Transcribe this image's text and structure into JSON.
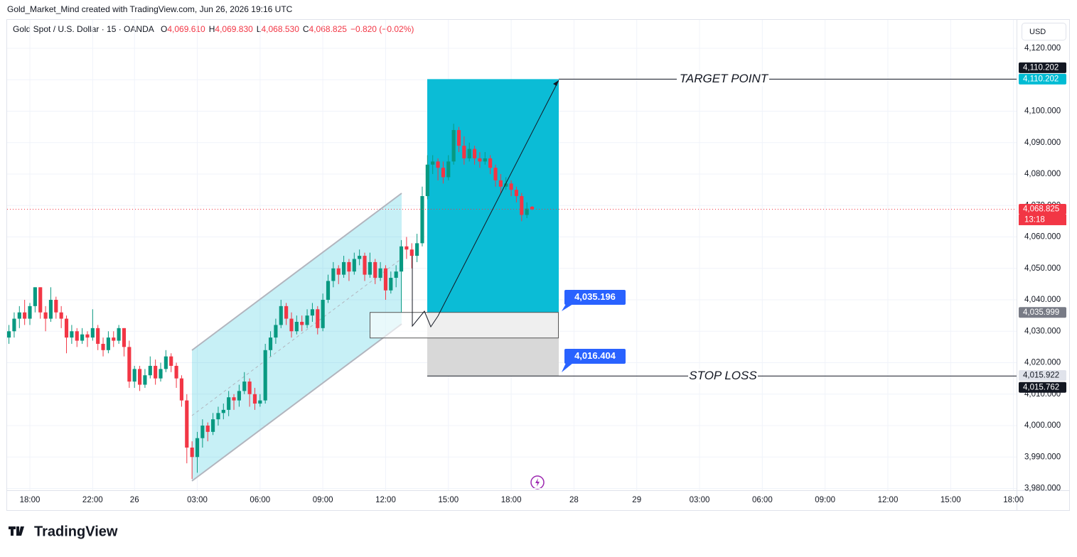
{
  "chart_data": {
    "type": "candlestick",
    "attribution": "Gold_Market_Mind created with TradingView.com, Jun 26, 2026 19:16 UTC",
    "symbol": "Gold Spot / U.S. Dollar · 15 · OANDA",
    "legend": [
      {
        "key": "O",
        "value": "4,069.610"
      },
      {
        "key": "H",
        "value": "4,069.830"
      },
      {
        "key": "L",
        "value": "4,068.530"
      },
      {
        "key": "C",
        "value": "4,068.825"
      }
    ],
    "change": "−0.820 (−0.02%)",
    "currency": "USD",
    "brand": "TradingView",
    "up_color": "#089981",
    "down_color": "#f23645",
    "grid": true,
    "xlim": [
      -0.35,
      192.6
    ],
    "ylim": [
      3979.44,
      4129.04
    ],
    "xticks": [
      {
        "value": 4,
        "label": "18:00"
      },
      {
        "value": 16,
        "label": "22:00"
      },
      {
        "value": 24,
        "label": "26"
      },
      {
        "value": 36,
        "label": "03:00"
      },
      {
        "value": 48,
        "label": "06:00"
      },
      {
        "value": 60,
        "label": "09:00"
      },
      {
        "value": 72,
        "label": "12:00"
      },
      {
        "value": 84,
        "label": "15:00"
      },
      {
        "value": 96,
        "label": "18:00"
      },
      {
        "value": 108,
        "label": "28"
      },
      {
        "value": 120,
        "label": "29"
      },
      {
        "value": 132,
        "label": "03:00"
      },
      {
        "value": 144,
        "label": "06:00"
      },
      {
        "value": 156,
        "label": "09:00"
      },
      {
        "value": 168,
        "label": "12:00"
      },
      {
        "value": 180,
        "label": "15:00"
      },
      {
        "value": 192,
        "label": "18:00"
      }
    ],
    "yticks": [
      {
        "value": 4120,
        "label": "4,120.000"
      },
      {
        "value": 4110,
        "label": "4,110.000"
      },
      {
        "value": 4100,
        "label": "4,100.000"
      },
      {
        "value": 4090,
        "label": "4,090.000"
      },
      {
        "value": 4080,
        "label": "4,080.000"
      },
      {
        "value": 4070,
        "label": "4,070.000"
      },
      {
        "value": 4060,
        "label": "4,060.000"
      },
      {
        "value": 4050,
        "label": "4,050.000"
      },
      {
        "value": 4040,
        "label": "4,040.000"
      },
      {
        "value": 4030,
        "label": "4,030.000"
      },
      {
        "value": 4020,
        "label": "4,020.000"
      },
      {
        "value": 4010,
        "label": "4,010.000"
      },
      {
        "value": 4000,
        "label": "4,000.000"
      },
      {
        "value": 3990,
        "label": "3,990.000"
      },
      {
        "value": 3980,
        "label": "3,980.000"
      }
    ],
    "ohlc": [
      [
        4028,
        4032,
        4026,
        4030
      ],
      [
        4030,
        4036,
        4028,
        4034
      ],
      [
        4034,
        4038,
        4031,
        4036
      ],
      [
        4036,
        4040,
        4032,
        4034
      ],
      [
        4034,
        4039,
        4032,
        4038
      ],
      [
        4038,
        4044,
        4036,
        4044
      ],
      [
        4044,
        4044,
        4034,
        4036
      ],
      [
        4036,
        4038,
        4030,
        4034
      ],
      [
        4034,
        4044,
        4033,
        4040
      ],
      [
        4040,
        4041,
        4034,
        4036
      ],
      [
        4036,
        4038,
        4031,
        4034
      ],
      [
        4034,
        4035,
        4023,
        4028
      ],
      [
        4028,
        4032,
        4026,
        4030
      ],
      [
        4030,
        4031,
        4025,
        4027
      ],
      [
        4027,
        4031,
        4026,
        4029
      ],
      [
        4029,
        4030,
        4025,
        4028
      ],
      [
        4028,
        4037,
        4027,
        4031
      ],
      [
        4031,
        4032,
        4024,
        4026
      ],
      [
        4026,
        4028,
        4022,
        4024
      ],
      [
        4024,
        4030,
        4023,
        4028
      ],
      [
        4028,
        4030,
        4025,
        4027
      ],
      [
        4027,
        4032,
        4026,
        4031
      ],
      [
        4031,
        4031,
        4022,
        4025
      ],
      [
        4025,
        4027,
        4012,
        4014
      ],
      [
        4014,
        4019,
        4012,
        4018
      ],
      [
        4018,
        4019,
        4011,
        4013
      ],
      [
        4013,
        4018,
        4012,
        4016
      ],
      [
        4016,
        4022,
        4015,
        4019
      ],
      [
        4019,
        4021,
        4013,
        4015
      ],
      [
        4015,
        4020,
        4014,
        4018
      ],
      [
        4018,
        4024,
        4017,
        4022
      ],
      [
        4022,
        4023,
        4017,
        4019
      ],
      [
        4019,
        4020,
        4012,
        4015
      ],
      [
        4015,
        4016,
        4006,
        4008
      ],
      [
        4008,
        4010,
        3988,
        3993
      ],
      [
        3993,
        3995,
        3983,
        3990
      ],
      [
        3990,
        3998,
        3985,
        3996
      ],
      [
        3996,
        4002,
        3993,
        4000
      ],
      [
        4000,
        4001,
        3995,
        3998
      ],
      [
        3998,
        4004,
        3997,
        4002
      ],
      [
        4002,
        4006,
        4000,
        4004
      ],
      [
        4004,
        4007,
        4002,
        4005
      ],
      [
        4005,
        4011,
        4003,
        4009
      ],
      [
        4009,
        4010,
        4005,
        4008
      ],
      [
        4008,
        4013,
        4006,
        4011
      ],
      [
        4011,
        4017,
        4010,
        4014
      ],
      [
        4014,
        4015,
        4006,
        4010
      ],
      [
        4010,
        4012,
        4005,
        4007
      ],
      [
        4007,
        4010,
        4006,
        4008
      ],
      [
        4008,
        4026,
        4007,
        4024
      ],
      [
        4024,
        4030,
        4022,
        4028
      ],
      [
        4028,
        4034,
        4026,
        4032
      ],
      [
        4032,
        4040,
        4031,
        4038
      ],
      [
        4038,
        4039,
        4032,
        4034
      ],
      [
        4034,
        4036,
        4028,
        4030
      ],
      [
        4030,
        4035,
        4029,
        4033
      ],
      [
        4033,
        4035,
        4030,
        4032
      ],
      [
        4032,
        4037,
        4031,
        4035
      ],
      [
        4035,
        4039,
        4033,
        4037
      ],
      [
        4037,
        4038,
        4029,
        4031
      ],
      [
        4031,
        4042,
        4030,
        4040
      ],
      [
        4040,
        4048,
        4039,
        4046
      ],
      [
        4046,
        4052,
        4044,
        4050
      ],
      [
        4050,
        4051,
        4045,
        4048
      ],
      [
        4048,
        4054,
        4047,
        4052
      ],
      [
        4052,
        4053,
        4046,
        4049
      ],
      [
        4049,
        4055,
        4048,
        4053
      ],
      [
        4053,
        4056,
        4051,
        4054
      ],
      [
        4054,
        4055,
        4046,
        4048
      ],
      [
        4048,
        4055,
        4047,
        4052
      ],
      [
        4052,
        4053,
        4045,
        4047
      ],
      [
        4047,
        4052,
        4046,
        4050
      ],
      [
        4050,
        4051,
        4040,
        4043
      ],
      [
        4043,
        4049,
        4042,
        4047
      ],
      [
        4047,
        4051,
        4044,
        4049
      ],
      [
        4049,
        4059,
        4036,
        4057
      ],
      [
        4057,
        4060,
        4053,
        4056
      ],
      [
        4056,
        4058,
        4050,
        4054
      ],
      [
        4054,
        4061,
        4052,
        4058
      ],
      [
        4058,
        4076,
        4057,
        4073
      ],
      [
        4073,
        4086,
        4072,
        4083
      ],
      [
        4083,
        4086,
        4080,
        4084
      ],
      [
        4084,
        4085,
        4078,
        4082
      ],
      [
        4082,
        4084,
        4077,
        4079
      ],
      [
        4079,
        4086,
        4078,
        4084
      ],
      [
        4084,
        4096,
        4083,
        4094
      ],
      [
        4094,
        4095,
        4087,
        4089
      ],
      [
        4089,
        4092,
        4083,
        4085
      ],
      [
        4085,
        4090,
        4084,
        4088
      ],
      [
        4088,
        4089,
        4083,
        4085
      ],
      [
        4085,
        4087,
        4082,
        4084
      ],
      [
        4084,
        4087,
        4083,
        4085
      ],
      [
        4085,
        4086,
        4080,
        4082
      ],
      [
        4082,
        4083,
        4076,
        4078
      ],
      [
        4078,
        4080,
        4074,
        4076
      ],
      [
        4076,
        4079,
        4075,
        4077
      ],
      [
        4077,
        4078,
        4073,
        4075
      ],
      [
        4075,
        4076,
        4071,
        4073
      ],
      [
        4073,
        4074,
        4065,
        4067
      ],
      [
        4067,
        4071,
        4066,
        4069
      ],
      [
        4069.61,
        4069.83,
        4068.53,
        4068.825
      ]
    ],
    "price_labels": [
      {
        "value": 4110.202,
        "label": "4,110.202",
        "color": "#131722"
      },
      {
        "value": 4110.202,
        "label": "4,110.202",
        "color": "#00bcd4"
      },
      {
        "value": 4068.825,
        "label": "4,068.825",
        "color": "#f23645"
      },
      {
        "value": 4035.999,
        "label": "4,035.999",
        "color": "#787b86"
      },
      {
        "value": 4015.922,
        "label": "4,015.922",
        "color": "#e0e3eb"
      },
      {
        "value": 4015.762,
        "label": "4,015.762",
        "color": "#131722"
      }
    ],
    "countdown": "13:18",
    "target_text": "TARGET POINT",
    "stop_text": "STOP LOSS",
    "callouts": [
      "4,035.196",
      "4,016.404"
    ]
  }
}
